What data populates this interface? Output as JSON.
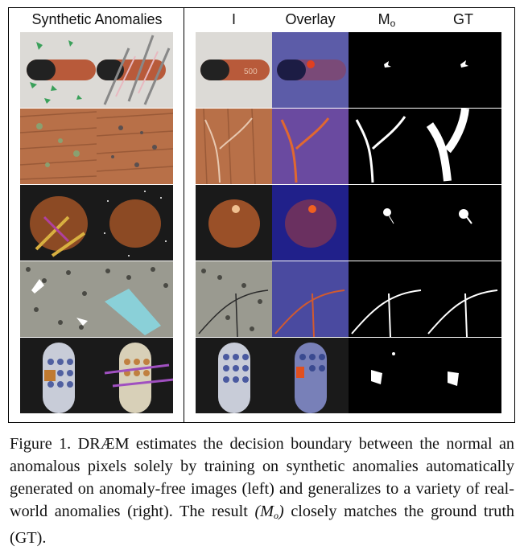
{
  "figure": {
    "left_header": "Synthetic Anomalies",
    "right_headers": {
      "input": "I",
      "overlay": "Overlay",
      "mask_base": "M",
      "mask_sub": "o",
      "gt": "GT"
    },
    "rows": [
      "capsule",
      "wood",
      "hazelnut",
      "tile",
      "toothbrush"
    ]
  },
  "caption": {
    "label": "Figure 1.",
    "text": "DRÆM estimates the decision boundary between the normal an anomalous pixels solely by training on synthetic anomalies automatically generated on anomaly-free images (left) and generalizes to a variety of real-world anomalies (right). The result",
    "math_open": "(M",
    "math_sub": "o",
    "math_close": ")",
    "tail": "closely matches the ground truth (GT)."
  }
}
